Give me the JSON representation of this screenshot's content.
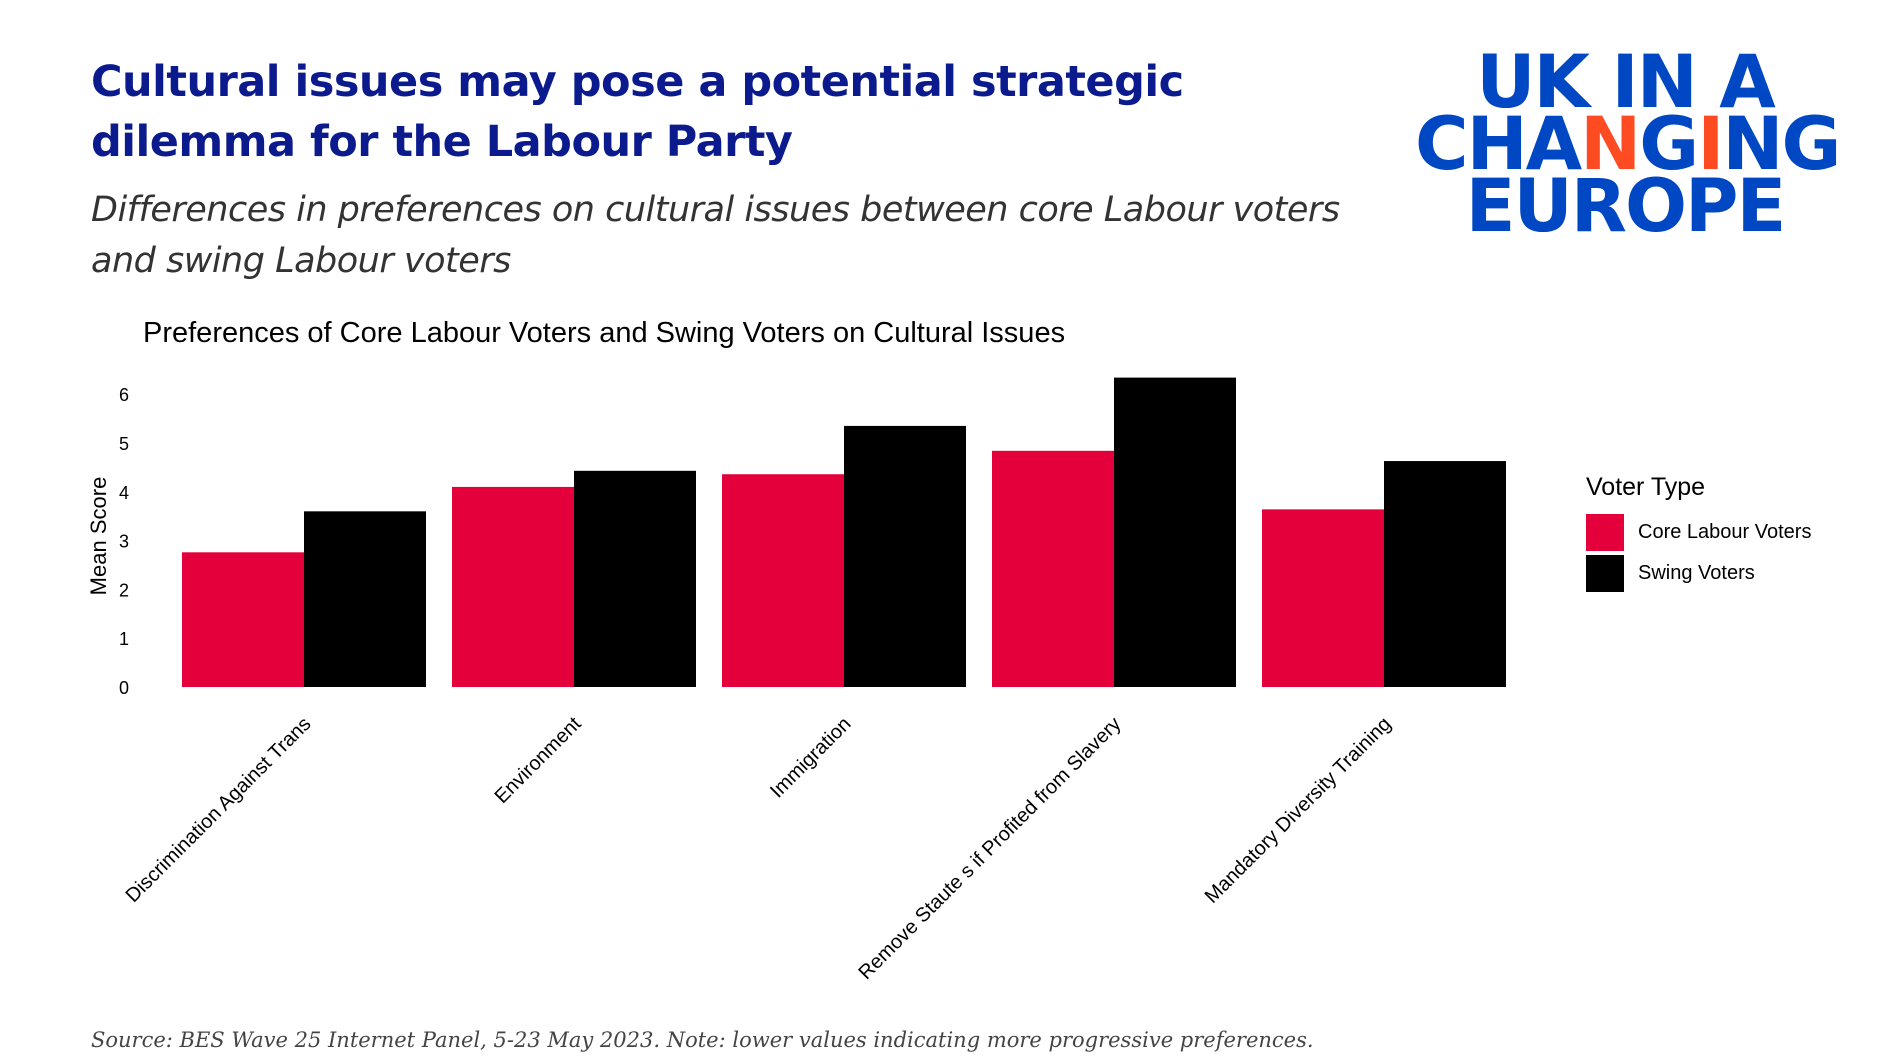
{
  "header": {
    "title": "Cultural issues may pose a potential strategic dilemma for the Labour Party",
    "subtitle": "Differences in preferences on cultural issues between core Labour voters and swing Labour voters"
  },
  "logo": {
    "text": "UK IN A CHANGING EUROPE",
    "line1": "UK IN A",
    "line2": "CHANGING",
    "line3": "EUROPE",
    "blue": "#0047c4",
    "orange": "#ff4b22"
  },
  "footnote": "Source: BES Wave 25 Internet Panel, 5-23 May 2023. Note: lower values indicating more progressive preferences.",
  "chart_data": {
    "type": "bar",
    "title": "Preferences of Core Labour Voters and Swing Voters on Cultural Issues",
    "xlabel": "",
    "ylabel": "Mean Score",
    "ylim": [
      0,
      6.4
    ],
    "yticks": [
      "0",
      "1",
      "2",
      "3",
      "4",
      "5",
      "6"
    ],
    "grid": false,
    "categories": [
      "Discrimination Against Trans",
      "Environment",
      "Immigration",
      "Remove Staute s if Profited from Slavery",
      "Mandatory Diversity Training"
    ],
    "series": [
      {
        "name": "Core Labour Voters",
        "color": "#e4003b",
        "values": [
          2.76,
          4.1,
          4.36,
          4.84,
          3.64
        ]
      },
      {
        "name": "Swing Voters",
        "color": "#000000",
        "values": [
          3.6,
          4.43,
          5.35,
          6.34,
          4.63
        ]
      }
    ],
    "legend": {
      "title": "Voter Type",
      "position": "right"
    }
  }
}
